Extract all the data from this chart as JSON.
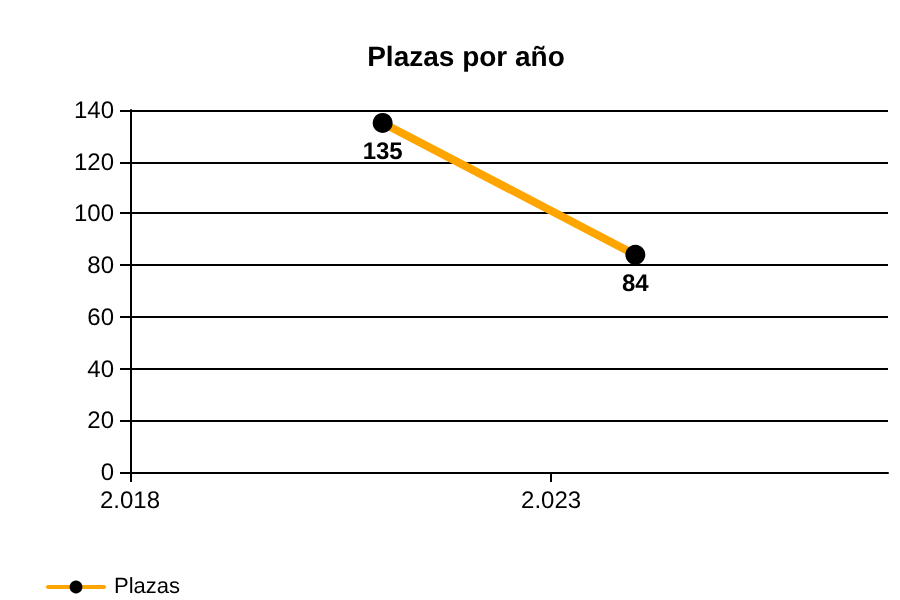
{
  "chart_data": {
    "type": "line",
    "title": "Plazas por año",
    "x": [
      2021,
      2024
    ],
    "series": [
      {
        "name": "Plazas",
        "color": "#ffa500",
        "values": [
          135,
          84
        ]
      }
    ],
    "xlim": [
      2018,
      2027
    ],
    "xticks": [
      {
        "value": 2018,
        "label": "2.018"
      },
      {
        "value": 2023,
        "label": "2.023"
      }
    ],
    "ylim": [
      0,
      140
    ],
    "yticks": [
      0,
      20,
      40,
      60,
      80,
      100,
      120,
      140
    ],
    "grid": "y",
    "legend": "bottom left",
    "marker": "circle",
    "data_labels": true
  }
}
